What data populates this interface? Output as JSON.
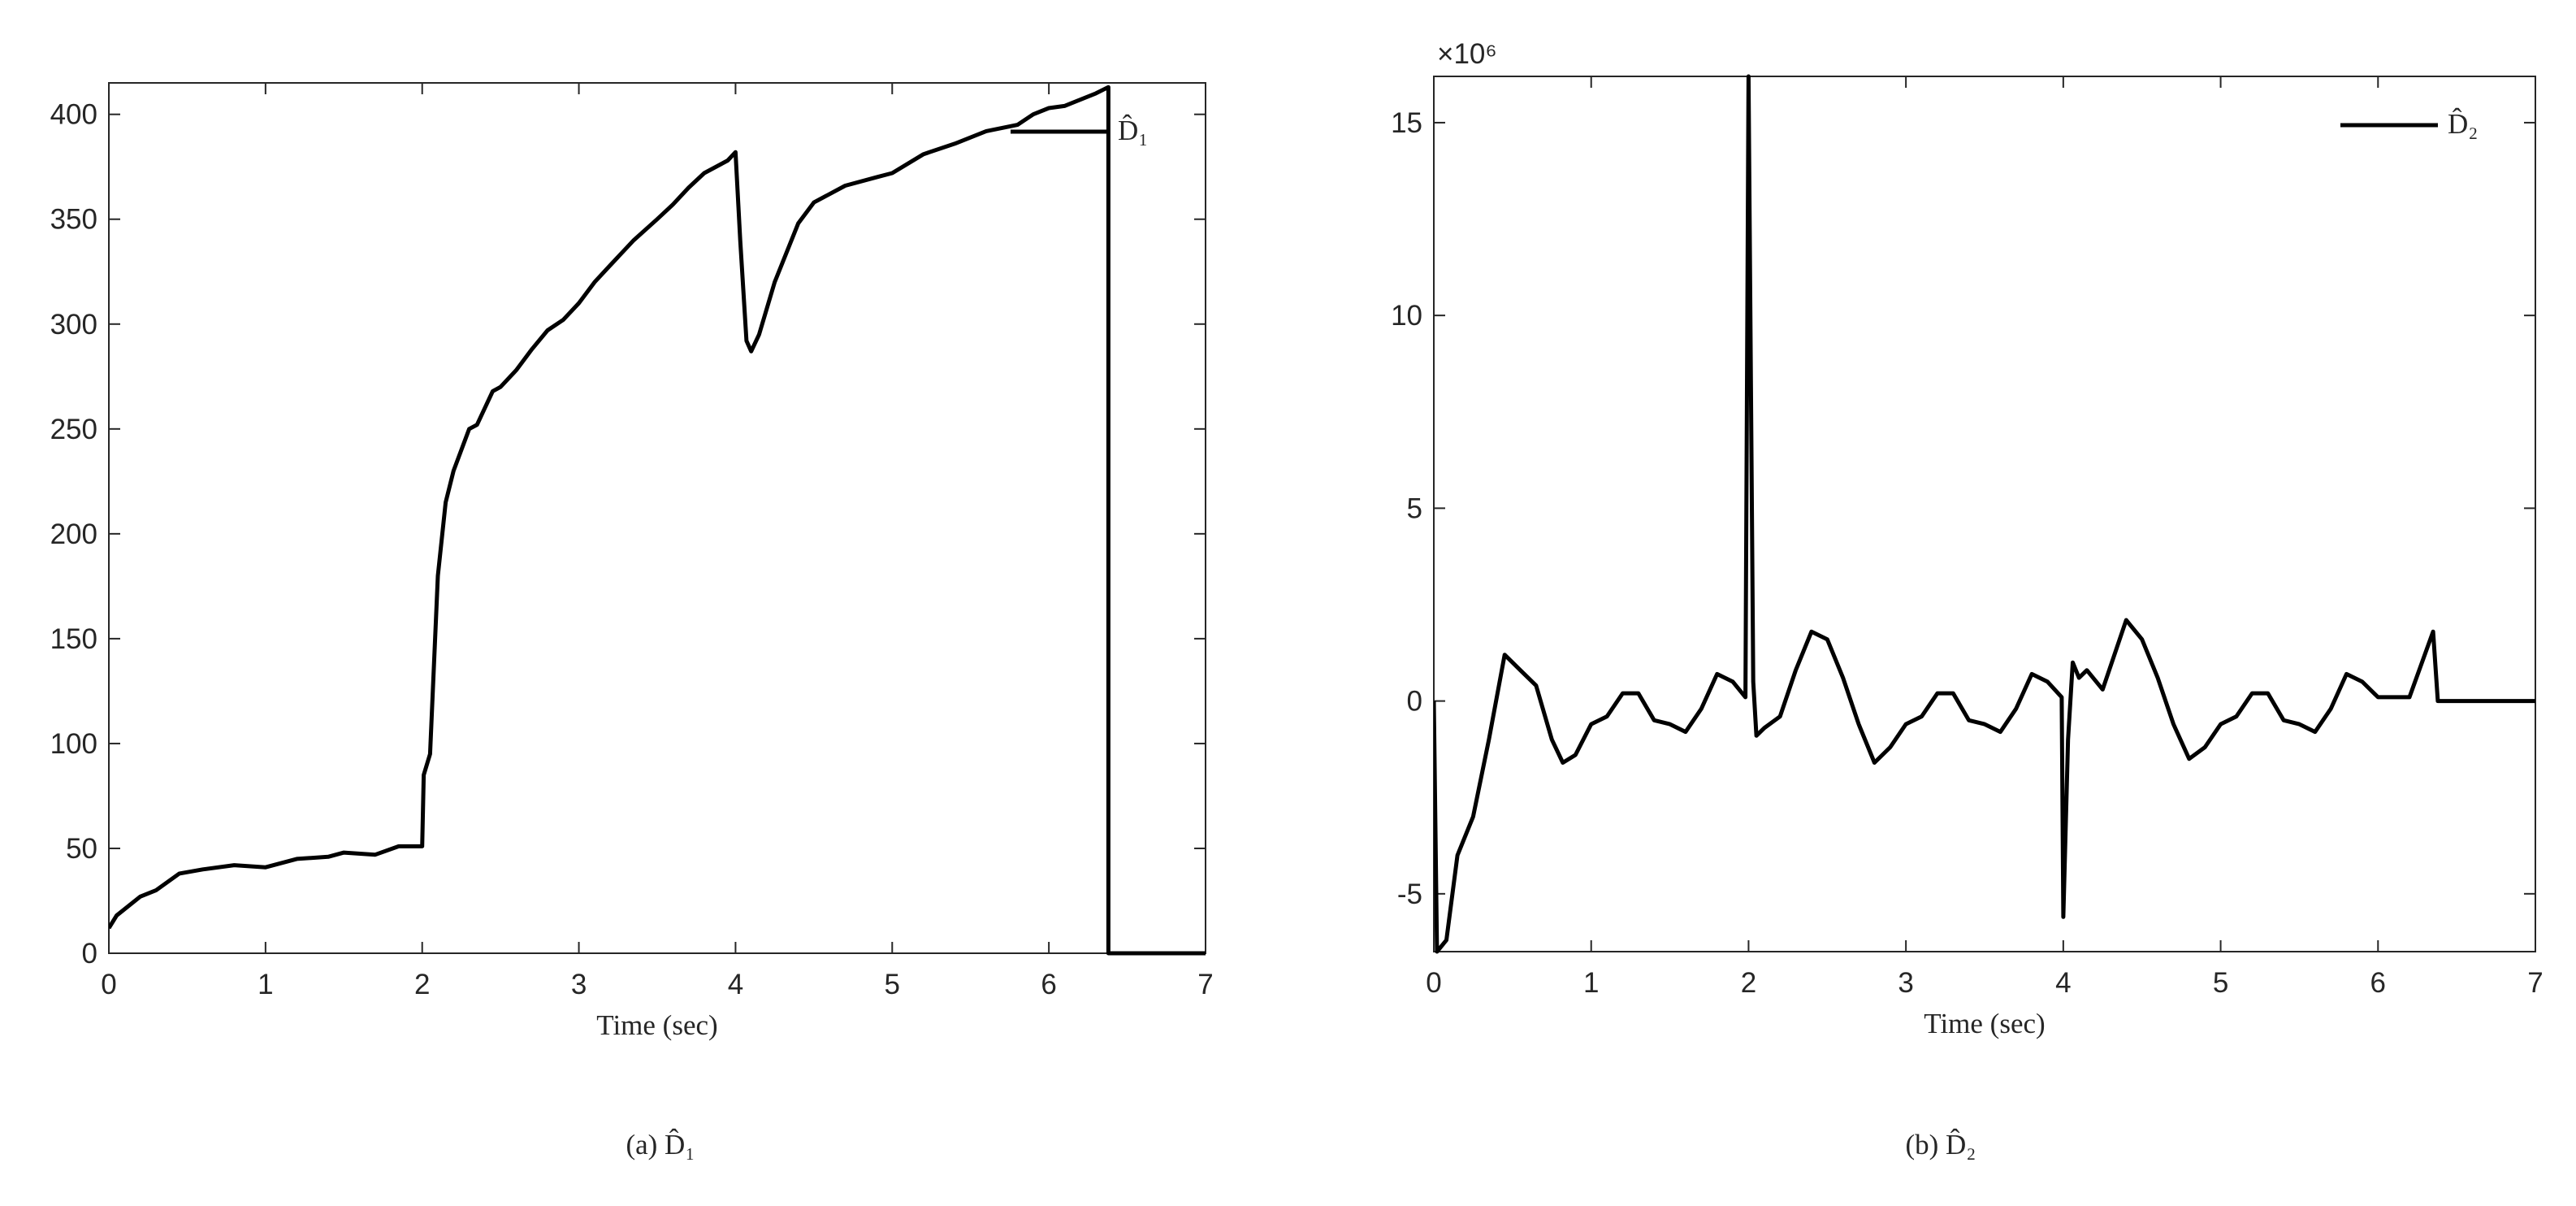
{
  "chart_data": [
    {
      "type": "line",
      "xlabel": "Time (sec)",
      "caption": "(a) D̂₁",
      "x": [
        0,
        0.05,
        0.2,
        0.3,
        0.45,
        0.6,
        0.8,
        1.0,
        1.2,
        1.4,
        1.5,
        1.7,
        1.85,
        1.99,
        2.0,
        2.01,
        2.05,
        2.1,
        2.15,
        2.2,
        2.3,
        2.35,
        2.45,
        2.5,
        2.6,
        2.7,
        2.8,
        2.9,
        3.0,
        3.1,
        3.2,
        3.35,
        3.5,
        3.6,
        3.7,
        3.8,
        3.95,
        4.0,
        4.03,
        4.07,
        4.1,
        4.15,
        4.25,
        4.4,
        4.5,
        4.7,
        4.9,
        5.0,
        5.2,
        5.4,
        5.6,
        5.8,
        5.9,
        6.0,
        6.1,
        6.3,
        6.38,
        6.38,
        7
      ],
      "series": [
        {
          "name": "D̂₁",
          "color": "#000000",
          "values": [
            12,
            18,
            27,
            30,
            38,
            40,
            42,
            41,
            45,
            46,
            48,
            47,
            51,
            51,
            51,
            85,
            95,
            180,
            215,
            230,
            250,
            252,
            268,
            270,
            278,
            288,
            297,
            302,
            310,
            320,
            328,
            340,
            350,
            357,
            365,
            372,
            378,
            382,
            340,
            292,
            287,
            295,
            320,
            348,
            358,
            366,
            370,
            372,
            381,
            386,
            392,
            395,
            400,
            403,
            404,
            410,
            413,
            0,
            0
          ]
        }
      ],
      "xlim": [
        0,
        7
      ],
      "xticks": [
        0,
        1,
        2,
        3,
        4,
        5,
        6,
        7
      ],
      "ylim": [
        0,
        415
      ],
      "yticks": [
        0,
        50,
        100,
        150,
        200,
        250,
        300,
        350,
        400
      ],
      "legend": "upper right"
    },
    {
      "type": "line",
      "xlabel": "Time (sec)",
      "caption": "(b) D̂₂",
      "y_multiplier": "×10⁶",
      "x": [
        0,
        0.02,
        0.08,
        0.15,
        0.25,
        0.35,
        0.45,
        0.55,
        0.65,
        0.75,
        0.82,
        0.9,
        1.0,
        1.1,
        1.2,
        1.3,
        1.4,
        1.5,
        1.6,
        1.7,
        1.8,
        1.9,
        1.98,
        2.0,
        2.03,
        2.05,
        2.1,
        2.2,
        2.3,
        2.4,
        2.5,
        2.6,
        2.7,
        2.8,
        2.9,
        3.0,
        3.1,
        3.2,
        3.3,
        3.4,
        3.5,
        3.6,
        3.7,
        3.8,
        3.9,
        3.99,
        4.0,
        4.03,
        4.06,
        4.1,
        4.15,
        4.25,
        4.4,
        4.5,
        4.6,
        4.7,
        4.8,
        4.9,
        5.0,
        5.1,
        5.2,
        5.3,
        5.4,
        5.5,
        5.6,
        5.7,
        5.8,
        5.9,
        6.0,
        6.2,
        6.35,
        6.38,
        7
      ],
      "series": [
        {
          "name": "D̂₂",
          "color": "#000000",
          "values": [
            0,
            -6.5,
            -6.2,
            -4,
            -3,
            -1,
            1.2,
            0.8,
            0.4,
            -1,
            -1.6,
            -1.4,
            -0.6,
            -0.4,
            0.2,
            0.2,
            -0.5,
            -0.6,
            -0.8,
            -0.2,
            0.7,
            0.5,
            0.1,
            16.2,
            0.5,
            -0.9,
            -0.7,
            -0.4,
            0.8,
            1.8,
            1.6,
            0.6,
            -0.6,
            -1.6,
            -1.2,
            -0.6,
            -0.4,
            0.2,
            0.2,
            -0.5,
            -0.6,
            -0.8,
            -0.2,
            0.7,
            0.5,
            0.1,
            -5.6,
            -1,
            1.0,
            0.6,
            0.8,
            0.3,
            2.1,
            1.6,
            0.6,
            -0.6,
            -1.5,
            -1.2,
            -0.6,
            -0.4,
            0.2,
            0.2,
            -0.5,
            -0.6,
            -0.8,
            -0.2,
            0.7,
            0.5,
            0.1,
            0.1,
            1.8,
            0,
            0
          ]
        }
      ],
      "xlim": [
        0,
        7
      ],
      "xticks": [
        0,
        1,
        2,
        3,
        4,
        5,
        6,
        7
      ],
      "ylim": [
        -6.5,
        16.2
      ],
      "yticks": [
        -5,
        0,
        5,
        10,
        15
      ],
      "legend": "upper right"
    }
  ]
}
